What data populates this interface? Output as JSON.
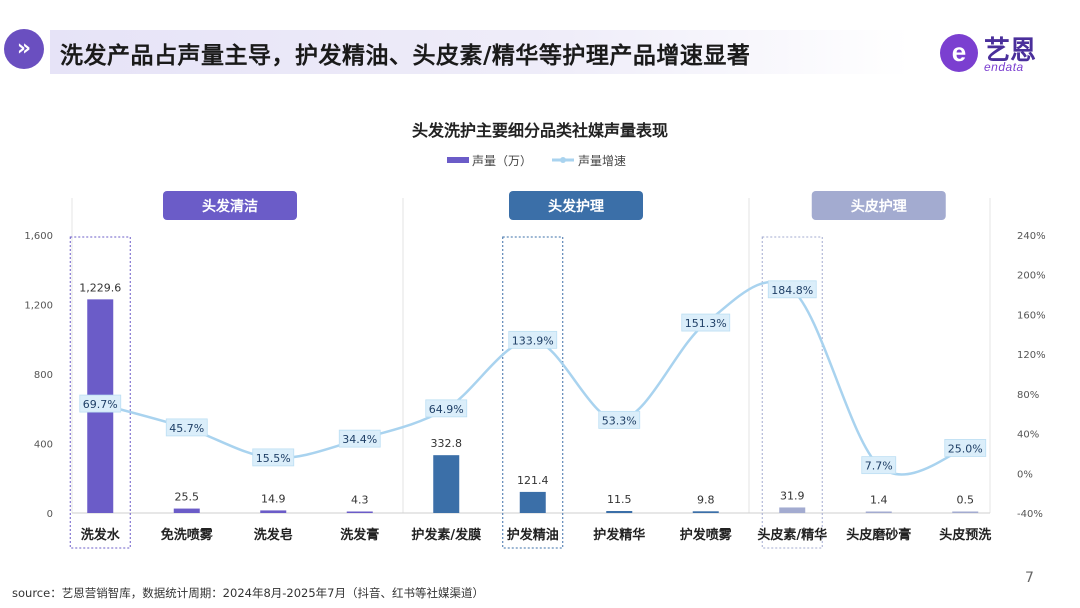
{
  "header": {
    "title": "洗发产品占声量主导，护发精油、头皮素/精华等护理产品增速显著",
    "nav_icon": "double-chevron-right-icon"
  },
  "logo": {
    "cn": "艺恩",
    "en": "endata",
    "mark": "e"
  },
  "colors": {
    "accent": "#6a4fc0",
    "bar_hair_wash": "#6b5cc8",
    "bar_hair_care": "#3b6fa8",
    "bar_scalp_care": "#a3abd0",
    "line": "#a9d3ef"
  },
  "chart_data": {
    "type": "bar",
    "title": "头发洗护主要细分品类社媒声量表现",
    "categories": [
      "洗发水",
      "免洗喷雾",
      "洗发皂",
      "洗发膏",
      "护发素/发膜",
      "护发精油",
      "护发精华",
      "护发喷雾",
      "头皮素/精华",
      "头皮磨砂膏",
      "头皮预洗"
    ],
    "groups": [
      {
        "label": "头发清洁",
        "start": 0,
        "end": 3,
        "color": "#6b5cc8"
      },
      {
        "label": "头发护理",
        "start": 4,
        "end": 7,
        "color": "#3b6fa8"
      },
      {
        "label": "头皮护理",
        "start": 8,
        "end": 10,
        "color": "#a3abd0"
      }
    ],
    "series": [
      {
        "name": "声量（万）",
        "type": "bar",
        "axis": "left",
        "values": [
          1229.6,
          25.5,
          14.9,
          4.3,
          332.8,
          121.4,
          11.5,
          9.8,
          31.9,
          1.4,
          0.5
        ],
        "labels": [
          "1,229.6",
          "25.5",
          "14.9",
          "4.3",
          "332.8",
          "121.4",
          "11.5",
          "9.8",
          "31.9",
          "1.4",
          "0.5"
        ]
      },
      {
        "name": "声量增速",
        "type": "line",
        "axis": "right",
        "values": [
          69.7,
          45.7,
          15.5,
          34.4,
          64.9,
          133.9,
          53.3,
          151.3,
          184.8,
          7.7,
          25.0
        ],
        "labels": [
          "69.7%",
          "45.7%",
          "15.5%",
          "34.4%",
          "64.9%",
          "133.9%",
          "53.3%",
          "151.3%",
          "184.8%",
          "7.7%",
          "25.0%"
        ]
      }
    ],
    "ylim": [
      0,
      1600
    ],
    "y_ticks": [
      "0",
      "400",
      "800",
      "1,200",
      "1,600"
    ],
    "y2lim": [
      -40,
      240
    ],
    "y2_ticks": [
      "-40%",
      "0%",
      "40%",
      "80%",
      "120%",
      "160%",
      "200%",
      "240%"
    ],
    "highlighted": [
      "洗发水",
      "护发精油",
      "头皮素/精华"
    ],
    "legend": "top-center",
    "grid": false
  },
  "footer": {
    "source": "source：艺恩营销智库，数据统计周期：2024年8月-2025年7月（抖音、红书等社媒渠道）",
    "page": "7"
  }
}
